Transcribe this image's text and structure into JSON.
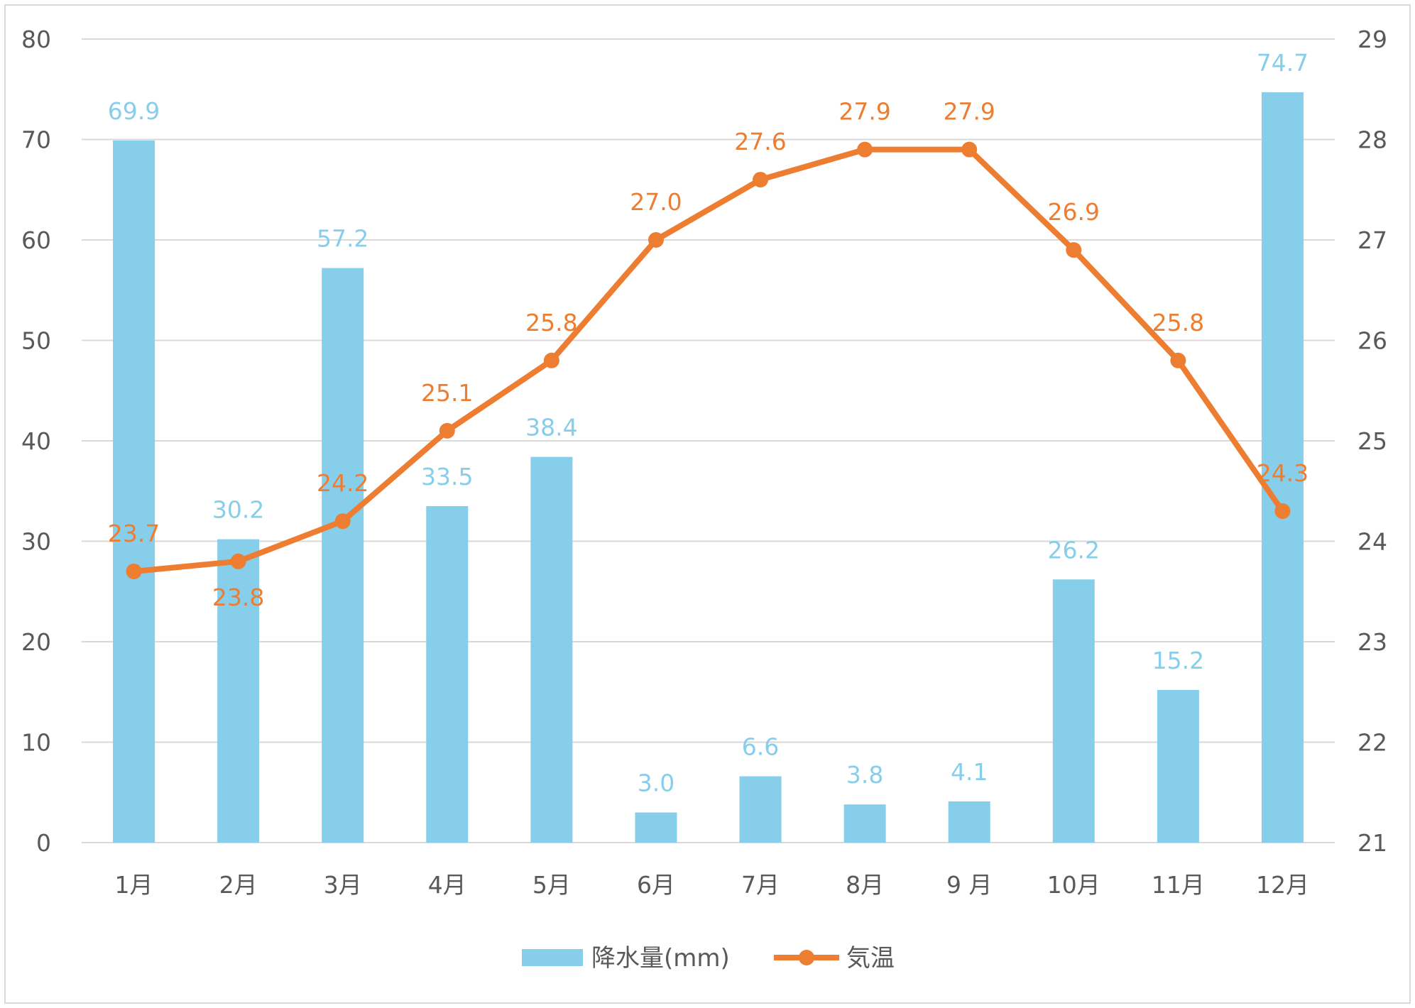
{
  "chart_data": {
    "type": "bar",
    "categories": [
      "1月",
      "2月",
      "3月",
      "4月",
      "5月",
      "6月",
      "7月",
      "8月",
      "9 月",
      "10月",
      "11月",
      "12月"
    ],
    "series": [
      {
        "name": "降水量(mm)",
        "type": "bar",
        "axis": "left",
        "color": "#87ceeb",
        "values": [
          69.9,
          30.2,
          57.2,
          33.5,
          38.4,
          3.0,
          6.6,
          3.8,
          4.1,
          26.2,
          15.2,
          74.7
        ],
        "labels": [
          "69.9",
          "30.2",
          "57.2",
          "33.5",
          "38.4",
          "3.0",
          "6.6",
          "3.8",
          "4.1",
          "26.2",
          "15.2",
          "74.7"
        ]
      },
      {
        "name": "気温",
        "type": "line",
        "axis": "right",
        "color": "#ed7d31",
        "values": [
          23.7,
          23.8,
          24.2,
          25.1,
          25.8,
          27.0,
          27.6,
          27.9,
          27.9,
          26.9,
          25.8,
          24.3
        ],
        "labels": [
          "23.7",
          "23.8",
          "24.2",
          "25.1",
          "25.8",
          "27.0",
          "27.6",
          "27.9",
          "27.9",
          "26.9",
          "25.8",
          "24.3"
        ]
      }
    ],
    "y_left": {
      "ylim": [
        0,
        80
      ],
      "ticks": [
        "0",
        "10",
        "20",
        "30",
        "40",
        "50",
        "60",
        "70",
        "80"
      ]
    },
    "y_right": {
      "ylim": [
        21,
        29
      ],
      "ticks": [
        "21",
        "22",
        "23",
        "24",
        "25",
        "26",
        "27",
        "28",
        "29"
      ]
    },
    "grid": true,
    "legend": "bottom",
    "title": "",
    "xlabel": "",
    "ylabel": ""
  },
  "colors": {
    "bar": "#87ceeb",
    "line": "#ed7d31",
    "grid": "#d9d9d9",
    "text": "#595959"
  }
}
